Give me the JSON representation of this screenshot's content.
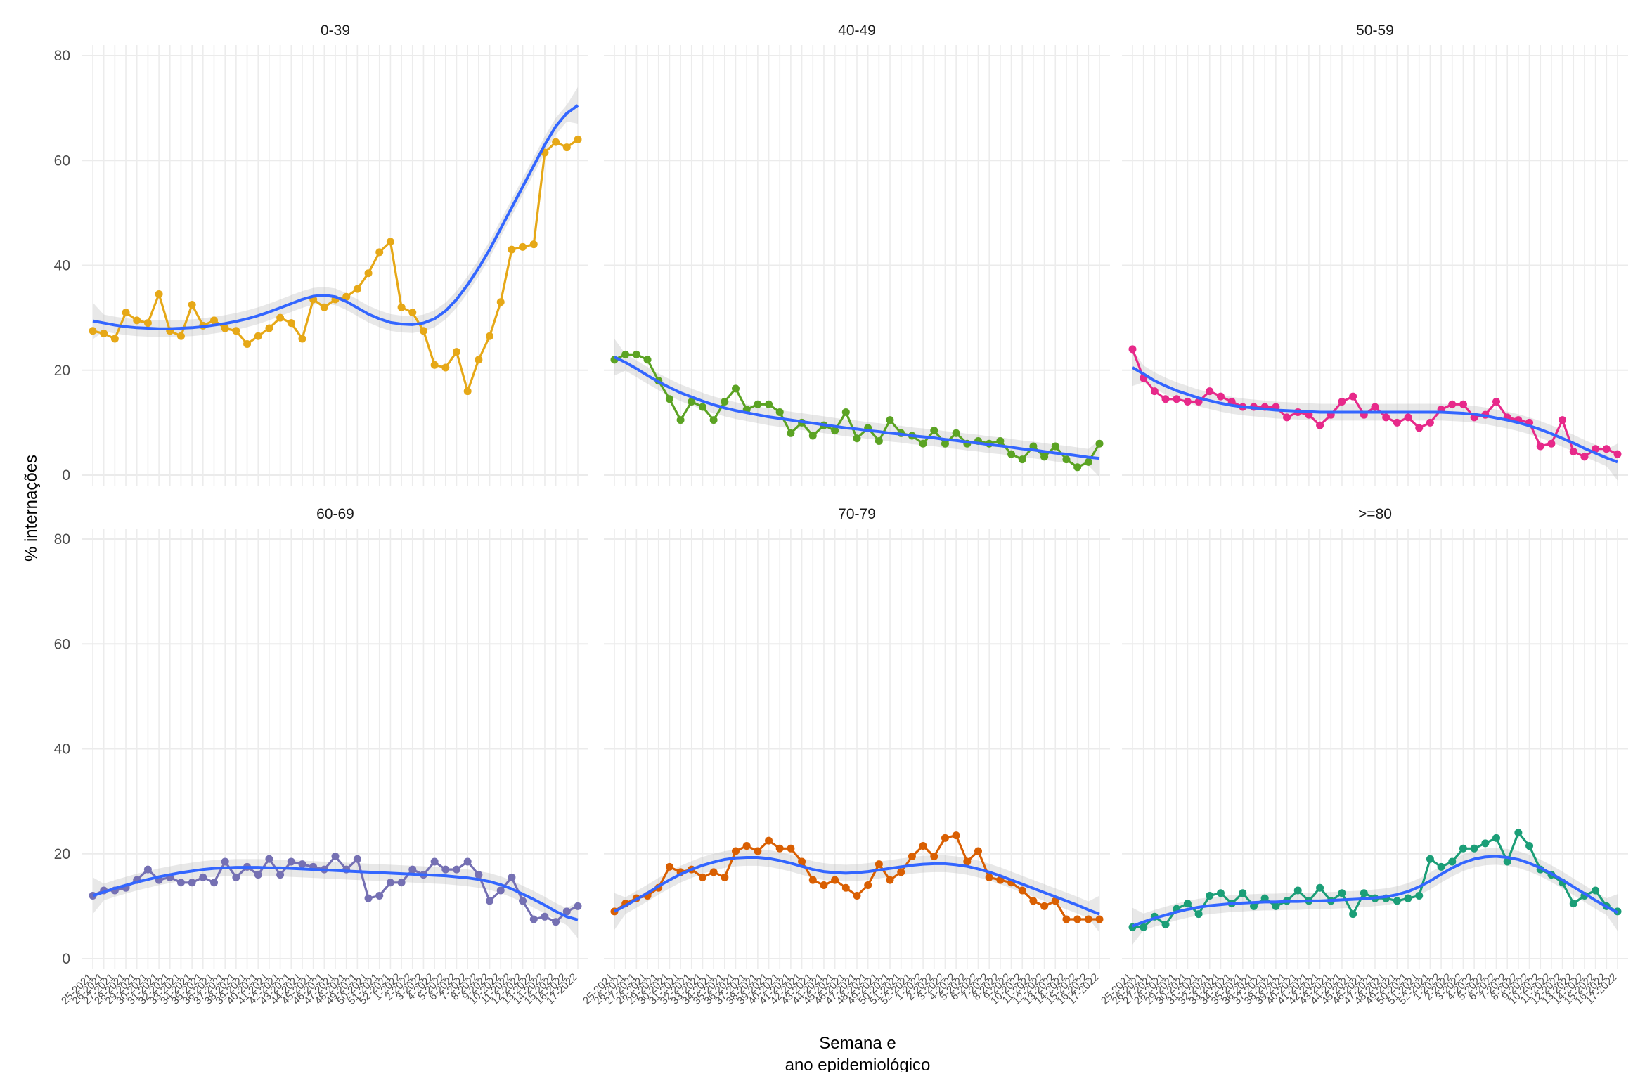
{
  "chart_data": {
    "type": "line",
    "facets": [
      "0-39",
      "40-49",
      "50-59",
      "60-69",
      "70-79",
      ">=80"
    ],
    "xlabel_lines": [
      "Semana e",
      "ano epidemiológico"
    ],
    "ylabel": "% internações",
    "ylim": [
      0,
      80
    ],
    "yticks": [
      0,
      20,
      40,
      60,
      80
    ],
    "grid": true,
    "smooth_color": "#3366ff",
    "categories": [
      "25-2021",
      "26-2021",
      "27-2021",
      "28-2021",
      "29-2021",
      "30-2021",
      "31-2021",
      "32-2021",
      "33-2021",
      "34-2021",
      "35-2021",
      "36-2021",
      "37-2021",
      "38-2021",
      "39-2021",
      "40-2021",
      "41-2021",
      "42-2021",
      "43-2021",
      "44-2021",
      "45-2021",
      "46-2021",
      "47-2021",
      "48-2021",
      "49-2021",
      "50-2021",
      "51-2021",
      "52-2021",
      "1-2022",
      "2-2022",
      "3-2022",
      "4-2022",
      "5-2022",
      "6-2022",
      "7-2022",
      "8-2022",
      "9-2022",
      "10-2022",
      "11-2022",
      "12-2022",
      "13-2022",
      "14-2022",
      "15-2022",
      "16-2022",
      "17-2022"
    ],
    "series": [
      {
        "name": "0-39",
        "color": "#e6a817",
        "values": [
          27.5,
          27,
          26,
          31,
          29.5,
          29,
          34.5,
          27.5,
          26.5,
          32.5,
          28.5,
          29.5,
          28,
          27.5,
          25,
          26.5,
          28,
          30,
          29,
          26,
          33.5,
          32,
          33.5,
          34,
          35.5,
          38.5,
          42.5,
          44.5,
          32,
          31,
          27.5,
          21,
          20.5,
          23.5,
          16,
          22,
          26.5,
          33,
          43,
          43.5,
          44,
          61.5,
          63.5,
          62.5,
          64
        ]
      },
      {
        "name": "40-49",
        "color": "#5ba323",
        "values": [
          22,
          23,
          23,
          22,
          18,
          14.5,
          10.5,
          14,
          13,
          10.5,
          14,
          16.5,
          12.5,
          13.5,
          13.5,
          12,
          8,
          10,
          7.5,
          9.5,
          8.5,
          12,
          7,
          9,
          6.5,
          10.5,
          8,
          7.5,
          6,
          8.5,
          6,
          8,
          6,
          6.5,
          6,
          6.5,
          4,
          3,
          5.5,
          3.5,
          5.5,
          3,
          1.5,
          2.5,
          6
        ]
      },
      {
        "name": "50-59",
        "color": "#e7298a",
        "values": [
          24,
          18.5,
          16,
          14.5,
          14.5,
          14,
          14,
          16,
          15,
          14,
          13,
          13,
          13,
          13,
          11,
          12,
          11.5,
          9.5,
          11.5,
          14,
          15,
          11.5,
          13,
          11,
          10,
          11,
          9,
          10,
          12.5,
          13.5,
          13.5,
          11,
          11.5,
          14,
          11,
          10.5,
          10,
          5.5,
          6,
          10.5,
          4.5,
          3.5,
          5,
          5,
          4
        ]
      },
      {
        "name": "60-69",
        "color": "#7570b3",
        "values": [
          12,
          13,
          13,
          13.5,
          15,
          17,
          15,
          15.5,
          14.5,
          14.5,
          15.5,
          14.5,
          18.5,
          15.5,
          17.5,
          16,
          19,
          16,
          18.5,
          18,
          17.5,
          17,
          19.5,
          17,
          19,
          11.5,
          12,
          14.5,
          14.5,
          17,
          16,
          18.5,
          17,
          17,
          18.5,
          16,
          11,
          13,
          15.5,
          11,
          7.5,
          8,
          7,
          9,
          10
        ]
      },
      {
        "name": "70-79",
        "color": "#d95f02",
        "values": [
          9,
          10.5,
          11.5,
          12,
          13.5,
          17.5,
          16.5,
          17,
          15.5,
          16.5,
          15.5,
          20.5,
          21.5,
          20.5,
          22.5,
          21,
          21,
          18.5,
          15,
          14,
          15,
          13.5,
          12,
          14,
          18,
          15,
          16.5,
          19.5,
          21.5,
          19.5,
          23,
          23.5,
          18.5,
          20.5,
          15.5,
          15,
          14.5,
          13,
          11,
          10,
          11,
          7.5,
          7.5,
          7.5,
          7.5
        ]
      },
      {
        "name": ">=80",
        "color": "#1b9e77",
        "values": [
          6,
          6,
          8,
          6.5,
          9.5,
          10.5,
          8.5,
          12,
          12.5,
          10.5,
          12.5,
          10,
          11.5,
          10,
          11,
          13,
          11,
          13.5,
          11,
          12.5,
          8.5,
          12.5,
          11.5,
          11.5,
          11,
          11.5,
          12,
          19,
          17.5,
          18.5,
          21,
          21,
          22,
          23,
          18.5,
          24,
          21.5,
          17,
          16,
          14.5,
          10.5,
          12,
          13,
          10,
          9
        ]
      }
    ],
    "smooth": [
      {
        "name": "0-39",
        "values": [
          29.4,
          29.0,
          28.6,
          28.3,
          28.1,
          28.0,
          27.9,
          27.9,
          28.0,
          28.1,
          28.3,
          28.6,
          28.9,
          29.3,
          29.8,
          30.4,
          31.1,
          31.9,
          32.7,
          33.5,
          34.1,
          34.3,
          34.0,
          33.1,
          31.9,
          30.7,
          29.8,
          29.1,
          28.8,
          28.7,
          29.0,
          29.8,
          31.3,
          33.5,
          36.3,
          39.5,
          43.0,
          47.0,
          51.0,
          55.0,
          59.0,
          63.0,
          66.5,
          69.0,
          70.5
        ]
      },
      {
        "name": "40-49",
        "values": [
          22.5,
          21.5,
          20.3,
          19.0,
          17.8,
          16.7,
          15.7,
          14.9,
          14.1,
          13.4,
          12.8,
          12.3,
          11.9,
          11.5,
          11.1,
          10.8,
          10.5,
          10.2,
          9.9,
          9.6,
          9.3,
          9.0,
          8.8,
          8.5,
          8.3,
          8.0,
          7.8,
          7.5,
          7.3,
          7.1,
          6.8,
          6.6,
          6.3,
          6.1,
          5.8,
          5.6,
          5.3,
          5.0,
          4.8,
          4.5,
          4.2,
          4.0,
          3.7,
          3.4,
          3.2
        ]
      },
      {
        "name": "50-59",
        "values": [
          20.5,
          19.3,
          18.0,
          17.0,
          16.1,
          15.4,
          14.7,
          14.2,
          13.7,
          13.3,
          13.0,
          12.8,
          12.6,
          12.4,
          12.3,
          12.2,
          12.1,
          12.0,
          12.0,
          12.0,
          12.0,
          12.0,
          12.0,
          12.0,
          12.0,
          12.0,
          12.0,
          12.0,
          12.0,
          11.9,
          11.8,
          11.6,
          11.3,
          10.9,
          10.5,
          10.0,
          9.4,
          8.7,
          7.9,
          7.0,
          6.1,
          5.1,
          4.2,
          3.3,
          2.5
        ]
      },
      {
        "name": "60-69",
        "values": [
          12.0,
          12.7,
          13.4,
          14.0,
          14.6,
          15.1,
          15.6,
          16.0,
          16.4,
          16.7,
          17.0,
          17.2,
          17.3,
          17.4,
          17.4,
          17.4,
          17.3,
          17.3,
          17.2,
          17.1,
          17.0,
          16.9,
          16.8,
          16.7,
          16.6,
          16.5,
          16.4,
          16.3,
          16.2,
          16.1,
          16.0,
          15.9,
          15.8,
          15.6,
          15.4,
          15.1,
          14.7,
          14.1,
          13.3,
          12.3,
          11.3,
          10.2,
          9.0,
          8.0,
          7.4
        ]
      },
      {
        "name": "70-79",
        "values": [
          9.0,
          10.1,
          11.3,
          12.5,
          13.8,
          15.0,
          16.1,
          17.0,
          17.8,
          18.4,
          18.9,
          19.2,
          19.3,
          19.3,
          19.1,
          18.7,
          18.2,
          17.6,
          17.0,
          16.6,
          16.4,
          16.3,
          16.4,
          16.6,
          16.9,
          17.2,
          17.5,
          17.8,
          18.0,
          18.1,
          18.1,
          17.9,
          17.6,
          17.1,
          16.5,
          15.8,
          15.0,
          14.2,
          13.4,
          12.6,
          11.8,
          11.0,
          10.2,
          9.3,
          8.5
        ]
      },
      {
        "name": ">=80",
        "values": [
          6.2,
          7.0,
          7.7,
          8.3,
          8.9,
          9.4,
          9.8,
          10.1,
          10.3,
          10.5,
          10.6,
          10.7,
          10.8,
          10.8,
          10.9,
          10.9,
          11.0,
          11.0,
          11.1,
          11.2,
          11.3,
          11.4,
          11.6,
          11.8,
          12.2,
          12.8,
          13.7,
          14.8,
          16.1,
          17.3,
          18.3,
          19.0,
          19.4,
          19.5,
          19.3,
          18.9,
          18.2,
          17.3,
          16.2,
          15.0,
          13.7,
          12.4,
          11.1,
          9.9,
          8.8
        ]
      }
    ]
  }
}
